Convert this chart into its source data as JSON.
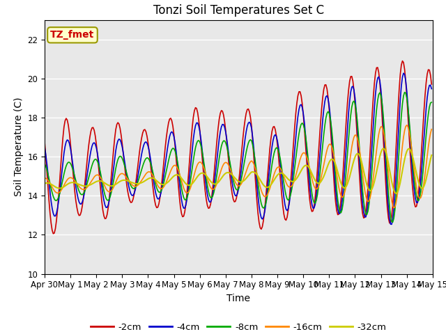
{
  "title": "Tonzi Soil Temperatures Set C",
  "xlabel": "Time",
  "ylabel": "Soil Temperature (C)",
  "ylim": [
    10,
    23
  ],
  "yticks": [
    10,
    12,
    14,
    16,
    18,
    20,
    22
  ],
  "series_labels": [
    "-2cm",
    "-4cm",
    "-8cm",
    "-16cm",
    "-32cm"
  ],
  "series_colors": [
    "#cc0000",
    "#0000cc",
    "#00aa00",
    "#ff8800",
    "#cccc00"
  ],
  "line_widths": [
    1.2,
    1.2,
    1.2,
    1.2,
    1.5
  ],
  "annotation_text": "TZ_fmet",
  "annotation_color": "#cc0000",
  "annotation_bg": "#ffffcc",
  "background_color": "#e8e8e8",
  "title_fontsize": 12,
  "label_fontsize": 10,
  "tick_fontsize": 8.5
}
